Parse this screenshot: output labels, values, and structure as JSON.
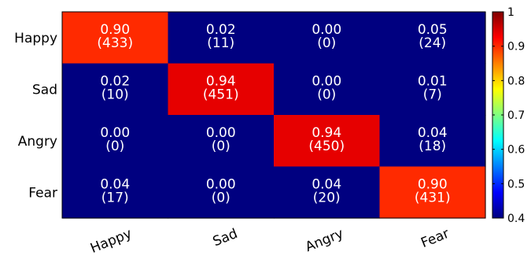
{
  "chart_data": {
    "type": "heatmap",
    "title": "",
    "xlabel": "",
    "ylabel": "",
    "rows": [
      "Happy",
      "Sad",
      "Angry",
      "Fear"
    ],
    "cols": [
      "Happy",
      "Sad",
      "Angry",
      "Fear"
    ],
    "values": [
      [
        0.9,
        0.02,
        0.0,
        0.05
      ],
      [
        0.02,
        0.94,
        0.0,
        0.01
      ],
      [
        0.0,
        0.0,
        0.94,
        0.04
      ],
      [
        0.04,
        0.0,
        0.04,
        0.9
      ]
    ],
    "value_labels": [
      [
        "0.90",
        "0.02",
        "0.00",
        "0.05"
      ],
      [
        "0.02",
        "0.94",
        "0.00",
        "0.01"
      ],
      [
        "0.00",
        "0.00",
        "0.94",
        "0.04"
      ],
      [
        "0.04",
        "0.00",
        "0.04",
        "0.90"
      ]
    ],
    "counts": [
      [
        "(433)",
        "(11)",
        "(0)",
        "(24)"
      ],
      [
        "(10)",
        "(451)",
        "(0)",
        "(7)"
      ],
      [
        "(0)",
        "(0)",
        "(450)",
        "(18)"
      ],
      [
        "(17)",
        "(0)",
        "(20)",
        "(431)"
      ]
    ],
    "colorbar": {
      "min": 0.4,
      "max": 1.0,
      "colormap": "jet",
      "ticks": [
        "0.4",
        "0.5",
        "0.6",
        "0.7",
        "0.8",
        "0.9",
        "1"
      ],
      "tick_values": [
        0.4,
        0.5,
        0.6,
        0.7,
        0.8,
        0.9,
        1.0
      ]
    },
    "colors": {
      "low_cell": "#00008f",
      "border": "#000000",
      "cell_text": "#ffffff"
    },
    "grid": false
  }
}
